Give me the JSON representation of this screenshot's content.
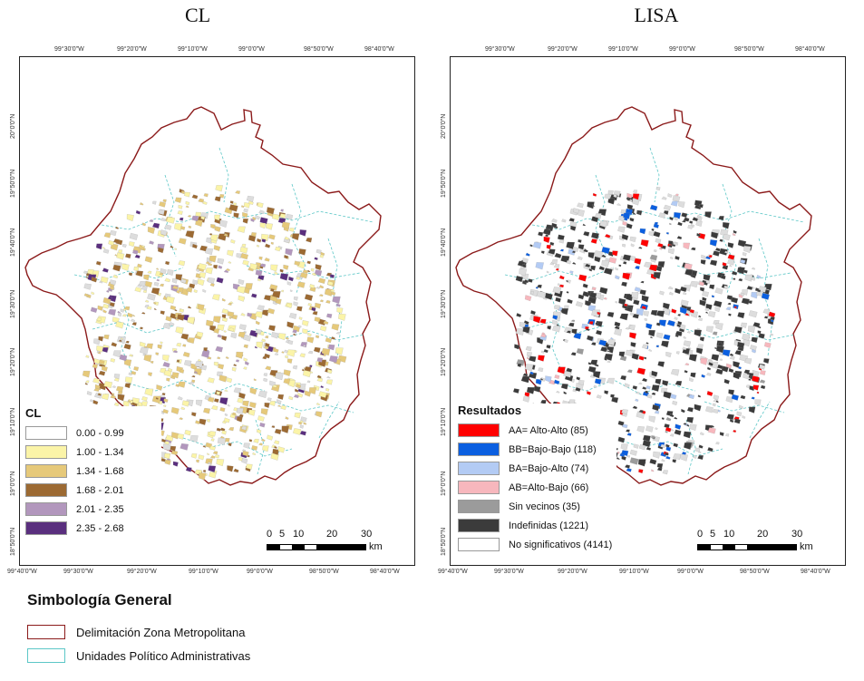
{
  "titles": {
    "left": "CL",
    "right": "LISA"
  },
  "axis_ticks": {
    "top": [
      "99°30'0\"W",
      "99°20'0\"W",
      "99°10'0\"W",
      "99°0'0\"W",
      "98°50'0\"W",
      "98°40'0\"W"
    ],
    "bottom": [
      "99°40'0\"W",
      "99°30'0\"W",
      "99°20'0\"W",
      "99°10'0\"W",
      "99°0'0\"W",
      "98°50'0\"W",
      "98°40'0\"W"
    ],
    "left": [
      "20°0'0\"N",
      "19°50'0\"N",
      "19°40'0\"N",
      "19°30'0\"N",
      "19°20'0\"N",
      "19°10'0\"N",
      "19°0'0\"N",
      "18°50'0\"N"
    ]
  },
  "legend_cl": {
    "title": "CL",
    "items": [
      {
        "label": "0.00 - 0.99",
        "color": "#ffffff"
      },
      {
        "label": "1.00 - 1.34",
        "color": "#fbf4a8"
      },
      {
        "label": "1.34 - 1.68",
        "color": "#e6c97a"
      },
      {
        "label": "1.68 - 2.01",
        "color": "#9c6a33"
      },
      {
        "label": "2.01 - 2.35",
        "color": "#b297bd"
      },
      {
        "label": "2.35 - 2.68",
        "color": "#5a2f7e"
      }
    ]
  },
  "legend_lisa": {
    "title": "Resultados",
    "items": [
      {
        "label": "AA= Alto-Alto (85)",
        "color": "#ff0000"
      },
      {
        "label": "BB=Bajo-Bajo (118)",
        "color": "#0b5fe0"
      },
      {
        "label": "BA=Bajo-Alto (74)",
        "color": "#b3cbf4"
      },
      {
        "label": "AB=Alto-Bajo (66)",
        "color": "#f7b7bd"
      },
      {
        "label": "Sin vecinos (35)",
        "color": "#9b9b9b"
      },
      {
        "label": "Indefinidas (1221)",
        "color": "#3b3b3b"
      },
      {
        "label": "No significativos (4141)",
        "color": "#ffffff"
      }
    ]
  },
  "scale": {
    "labels": [
      "0",
      "5",
      "10",
      "20",
      "30"
    ],
    "unit": "km"
  },
  "simbologia": {
    "title": "Simbología General",
    "items": [
      {
        "label": "Delimitación Zona Metropolitana",
        "color": "#8b1a1a"
      },
      {
        "label": "Unidades Político Administrativas",
        "color": "#5cc7c7"
      }
    ]
  }
}
